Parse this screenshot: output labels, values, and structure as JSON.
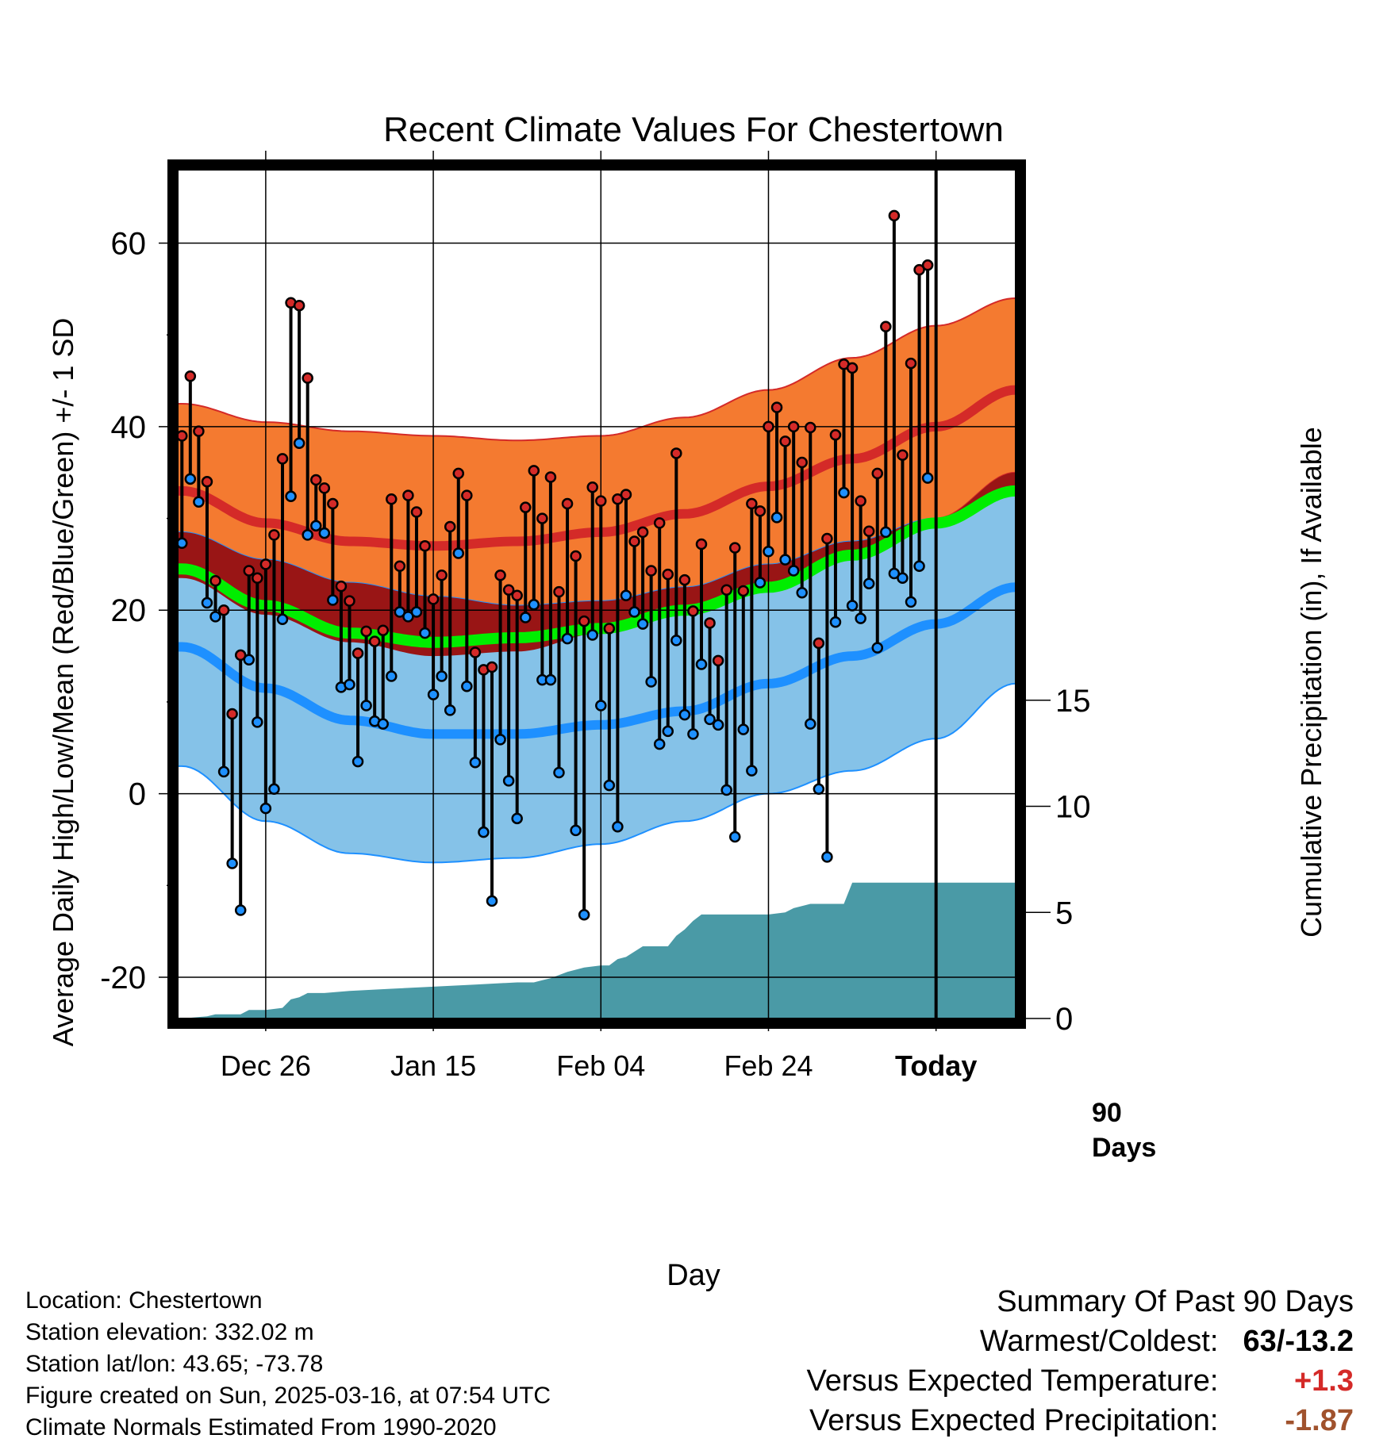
{
  "colors": {
    "high_band": "#f47a30",
    "high_band_edge": "#d42a28",
    "high_mean_line": "#d42a28",
    "low_band": "#85c2e8",
    "low_band_edge": "#1e90ff",
    "low_mean_line": "#1e90ff",
    "overlap": "#991515",
    "mean_line": "#00ee00",
    "precip_fill": "#4a9aa6",
    "high_dot": "#d42a28",
    "low_dot": "#1e90ff"
  },
  "chart_data": {
    "type": "line",
    "title": "Recent Climate Values For Chestertown",
    "xlabel": "Day",
    "ylabel": "Average Daily High/Low/Mean (Red/Blue/Green) +/- 1 SD",
    "y2label": "Cumulative Precipitation (in), If Available",
    "ylim": [
      -24.5,
      68
    ],
    "y_ticks": [
      "-20",
      "0",
      "20",
      "40",
      "60"
    ],
    "y2_ticks": [
      "0",
      "5",
      "10",
      "15"
    ],
    "y2lim": [
      0,
      40
    ],
    "x_ticks": [
      "Dec 26",
      "Jan 15",
      "Feb 04",
      "Feb 24",
      "Today"
    ],
    "x_tick_days": [
      10,
      30,
      50,
      70,
      90
    ],
    "xlim": [
      -0.5,
      99.5
    ],
    "today_marker": {
      "day": 90,
      "label_line1": "90",
      "label_line2": "Days"
    },
    "grid": true,
    "normals": {
      "days": [
        0,
        10,
        20,
        30,
        40,
        50,
        60,
        70,
        80,
        90,
        99.5
      ],
      "high_mean": [
        33,
        29.5,
        27.5,
        27,
        27.5,
        28.5,
        30.5,
        33.5,
        36.5,
        40,
        44
      ],
      "high_upper": [
        42.5,
        40.5,
        39.5,
        39,
        38.5,
        39,
        41,
        44,
        47.5,
        51,
        54
      ],
      "high_lower": [
        23.5,
        19.5,
        16.5,
        15,
        15.5,
        17.5,
        20,
        23,
        26.5,
        30,
        35
      ],
      "low_mean": [
        16,
        11.5,
        8,
        6.5,
        6.5,
        7.5,
        9,
        12,
        15,
        18.5,
        22.5
      ],
      "low_upper": [
        28.5,
        25.5,
        23,
        21.5,
        20.5,
        21,
        22.5,
        25,
        27.5,
        30,
        33
      ],
      "low_lower": [
        3,
        -3,
        -6.5,
        -7.5,
        -7,
        -5.5,
        -3,
        0,
        2.5,
        6,
        12
      ],
      "daily_mean": [
        24.5,
        20.5,
        17.5,
        16.5,
        17,
        18,
        20,
        22.5,
        26,
        29.5,
        33
      ]
    },
    "series": [
      {
        "name": "High",
        "values": [
          39,
          45.5,
          39.5,
          34,
          23.2,
          20,
          8.7,
          15.1,
          24.3,
          23.5,
          25,
          28.2,
          36.5,
          53.5,
          53.2,
          45.3,
          34.2,
          33.3,
          31.6,
          22.6,
          21,
          15.3,
          17.7,
          16.6,
          17.8,
          32.1,
          24.8,
          32.5,
          30.7,
          27,
          21.2,
          23.8,
          29.1,
          34.9,
          32.5,
          15.4,
          13.5,
          13.8,
          23.8,
          22.2,
          21.6,
          31.2,
          35.2,
          30,
          34.5,
          22,
          31.6,
          25.9,
          18.8,
          33.4,
          31.9,
          18,
          32.1,
          32.6,
          27.5,
          28.5,
          24.3,
          29.5,
          23.9,
          37.1,
          23.3,
          19.9,
          27.2,
          18.6,
          14.5,
          22.2,
          26.8,
          22.1,
          31.6,
          30.8,
          40,
          42.1,
          38.4,
          40,
          36.1,
          39.9,
          16.4,
          27.8,
          39.1,
          46.8,
          46.4,
          31.9,
          28.6,
          34.9,
          50.9,
          63,
          36.9,
          46.9,
          57.1,
          57.6
        ]
      },
      {
        "name": "Low",
        "values": [
          27.3,
          34.3,
          31.8,
          20.8,
          19.3,
          2.4,
          -7.6,
          -12.7,
          14.6,
          7.8,
          -1.6,
          0.5,
          19,
          32.4,
          38.2,
          28.2,
          29.2,
          28.4,
          21.1,
          11.6,
          11.9,
          3.5,
          9.6,
          7.9,
          7.6,
          12.8,
          19.8,
          19.3,
          19.8,
          17.5,
          10.8,
          12.8,
          9.1,
          26.2,
          11.7,
          3.4,
          -4.2,
          -11.7,
          5.9,
          1.4,
          -2.7,
          19.2,
          20.6,
          12.4,
          12.4,
          2.3,
          16.9,
          -4,
          -13.2,
          17.3,
          9.6,
          0.9,
          -3.6,
          21.6,
          19.8,
          18.5,
          12.2,
          5.4,
          6.8,
          16.7,
          8.6,
          6.5,
          14.1,
          8.1,
          7.5,
          0.4,
          -4.7,
          7,
          2.5,
          23,
          26.4,
          30.1,
          25.5,
          24.3,
          21.9,
          7.6,
          0.5,
          -6.9,
          18.7,
          32.8,
          20.5,
          19.1,
          22.9,
          15.9,
          28.5,
          24,
          23.5,
          20.9,
          24.8,
          34.4
        ]
      }
    ],
    "precipitation": {
      "name": "Cumulative Precipitation (in)",
      "days": [
        0,
        3,
        4,
        7,
        8,
        10,
        12,
        13,
        14,
        15,
        16,
        17,
        20,
        25,
        30,
        35,
        40,
        42,
        43,
        44,
        46,
        47,
        48,
        50,
        51,
        52,
        53,
        55,
        57,
        58,
        59,
        60,
        61,
        62,
        65,
        70,
        72,
        73,
        75,
        77,
        78,
        79,
        80,
        85,
        90,
        95,
        99.5
      ],
      "values": [
        0,
        0.1,
        0.2,
        0.2,
        0.4,
        0.4,
        0.5,
        0.9,
        1.0,
        1.2,
        1.2,
        1.2,
        1.3,
        1.4,
        1.5,
        1.6,
        1.7,
        1.7,
        1.8,
        1.9,
        2.2,
        2.3,
        2.4,
        2.5,
        2.5,
        2.8,
        2.9,
        3.4,
        3.4,
        3.4,
        3.9,
        4.2,
        4.6,
        4.9,
        4.9,
        4.9,
        5.0,
        5.2,
        5.4,
        5.4,
        5.4,
        5.4,
        6.4,
        6.4,
        6.4,
        6.4,
        6.4
      ]
    }
  },
  "info": {
    "location": "Location: Chestertown",
    "elevation": "Station elevation: 332.02 m",
    "latlon": "Station lat/lon: 43.65; -73.78",
    "created": "Figure created on Sun, 2025-03-16, at 07:54 UTC",
    "normals_period": "Climate Normals Estimated From 1990-2020"
  },
  "summary": {
    "heading": "Summary Of Past 90 Days",
    "warmest_label": "Warmest/Coldest:",
    "warmest_value": "63/-13.2",
    "temp_label": "Versus Expected Temperature:",
    "temp_value": "+1.3",
    "temp_color": "#d42a28",
    "precip_label": "Versus Expected Precipitation:",
    "precip_value": "-1.87",
    "precip_color": "#a0522d"
  }
}
